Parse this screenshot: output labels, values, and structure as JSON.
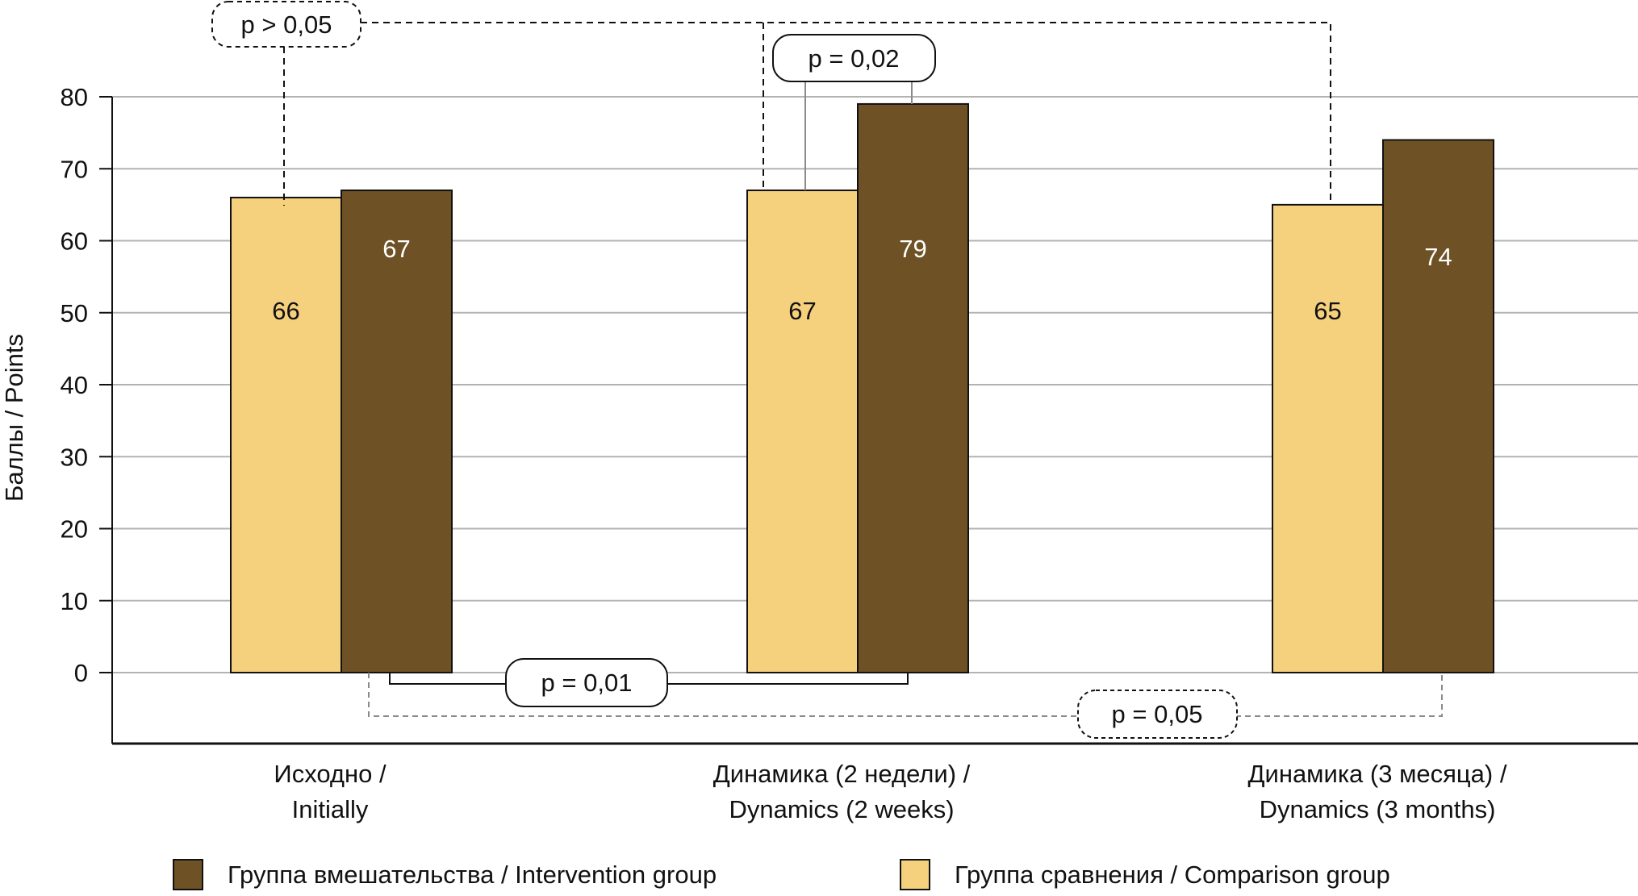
{
  "chart_data": {
    "type": "bar",
    "title": "",
    "ylabel": "Баллы / Points",
    "xlabel": "",
    "ylim": [
      -10,
      80
    ],
    "yticks": [
      0,
      10,
      20,
      30,
      40,
      50,
      60,
      70,
      80
    ],
    "grid": true,
    "legend_position": "bottom",
    "categories": [
      [
        "Исходно /",
        "Initially"
      ],
      [
        "Динамика (2 недели) /",
        "Dynamics (2 weeks)"
      ],
      [
        "Динамика (3 месяца) /",
        "Dynamics (3 months)"
      ]
    ],
    "series": [
      {
        "name": "Группа сравнения / Comparison group",
        "color": "#F5D07D",
        "label_color": "#111111",
        "values": [
          66,
          67,
          65
        ]
      },
      {
        "name": "Группа вмешательства / Intervention group",
        "color": "#6E5124",
        "label_color": "#FFFFFF",
        "values": [
          67,
          79,
          74
        ]
      }
    ],
    "legend_order": [
      1,
      0
    ],
    "annotations": [
      {
        "text": "p > 0,05",
        "style": "dashed-black"
      },
      {
        "text": "p = 0,02",
        "style": "solid"
      },
      {
        "text": "p = 0,01",
        "style": "solid"
      },
      {
        "text": "p = 0,05",
        "style": "dashed-gray"
      }
    ]
  }
}
